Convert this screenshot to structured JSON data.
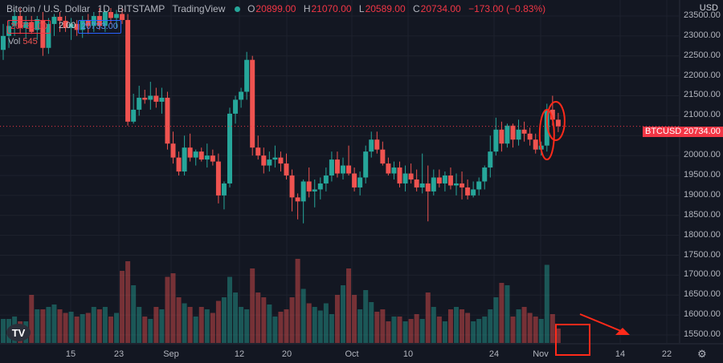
{
  "header": {
    "symbol_name": "Bitcoin / U.S. Dollar",
    "interval": "1D",
    "exchange": "BITSTAMP",
    "source": "TradingView",
    "ohlc": [
      {
        "k": "O",
        "v": "20899.00"
      },
      {
        "k": "H",
        "v": "21070.00"
      },
      {
        "k": "L",
        "v": "20589.00"
      },
      {
        "k": "C",
        "v": "20734.00"
      },
      {
        "k": "",
        "v": "−173.00 (−0.83%)"
      }
    ]
  },
  "order": {
    "sell": "20731.00",
    "spread": "2.00",
    "buy": "20733.00"
  },
  "volume": {
    "label": "Vol",
    "value": "545"
  },
  "axis": {
    "currency": "USD",
    "price_labels": [
      "23500.00",
      "23000.00",
      "22500.00",
      "22000.00",
      "21500.00",
      "21000.00",
      "20500.00",
      "20000.00",
      "19500.00",
      "19000.00",
      "18500.00",
      "18000.00",
      "17500.00",
      "17000.00",
      "16500.00",
      "16000.00",
      "15500.00"
    ],
    "time_labels": [
      "15",
      "23",
      "Sep",
      "12",
      "20",
      "Oct",
      "10",
      "24",
      "Nov",
      "14",
      "22"
    ]
  },
  "last_price": {
    "symbol": "BTCUSD",
    "price": "20734.00"
  },
  "colors": {
    "up": "#26a69a",
    "down": "#ef5350",
    "annotation": "#ff2a1a",
    "background": "#131722"
  },
  "icons": {
    "settings": "gear-icon",
    "logo": "tradingview-logo-icon"
  },
  "chart_data": {
    "type": "candlestick",
    "ylim": [
      15300,
      23700
    ],
    "candles": [
      [
        22650,
        23300,
        22400,
        23000,
        20
      ],
      [
        23000,
        23400,
        22700,
        23250,
        20
      ],
      [
        23250,
        23650,
        23000,
        23500,
        22
      ],
      [
        23500,
        23700,
        23050,
        23200,
        18
      ],
      [
        23200,
        23500,
        22950,
        23350,
        18
      ],
      [
        23350,
        23500,
        23050,
        23100,
        40
      ],
      [
        23150,
        23500,
        22900,
        23420,
        28
      ],
      [
        23400,
        23600,
        22500,
        22700,
        28
      ],
      [
        22700,
        23450,
        22550,
        23300,
        30
      ],
      [
        23300,
        23550,
        23000,
        23480,
        32
      ],
      [
        23480,
        23600,
        23100,
        23380,
        28
      ],
      [
        23380,
        23500,
        23100,
        23200,
        25
      ],
      [
        23200,
        23450,
        22900,
        23300,
        26
      ],
      [
        23300,
        23400,
        23000,
        23150,
        22
      ],
      [
        23150,
        23500,
        22950,
        23400,
        24
      ],
      [
        23400,
        23550,
        23050,
        23250,
        25
      ],
      [
        23250,
        23600,
        23100,
        23500,
        30
      ],
      [
        23500,
        23700,
        23150,
        23250,
        28
      ],
      [
        23250,
        23650,
        23100,
        23600,
        30
      ],
      [
        23600,
        23700,
        23300,
        23450,
        22
      ],
      [
        23450,
        23650,
        23200,
        23550,
        25
      ],
      [
        23550,
        23700,
        23300,
        23400,
        60
      ],
      [
        23400,
        23550,
        20750,
        20850,
        68
      ],
      [
        20850,
        21550,
        20800,
        21150,
        48
      ],
      [
        21150,
        21750,
        21000,
        21450,
        30
      ],
      [
        21450,
        21650,
        21300,
        21400,
        22
      ],
      [
        21400,
        21850,
        21150,
        21500,
        20
      ],
      [
        21500,
        21700,
        21200,
        21350,
        30
      ],
      [
        21350,
        21700,
        21050,
        21450,
        28
      ],
      [
        21450,
        21600,
        20150,
        20300,
        55
      ],
      [
        20300,
        20600,
        19800,
        19950,
        58
      ],
      [
        19950,
        20100,
        19500,
        19600,
        38
      ],
      [
        19600,
        20500,
        19500,
        20200,
        33
      ],
      [
        20200,
        20550,
        19850,
        19950,
        30
      ],
      [
        19950,
        20150,
        19750,
        20100,
        22
      ],
      [
        20100,
        20200,
        19850,
        19900,
        30
      ],
      [
        19900,
        20300,
        19700,
        20000,
        28
      ],
      [
        20000,
        20150,
        19750,
        19850,
        25
      ],
      [
        19850,
        20050,
        18800,
        19000,
        35
      ],
      [
        19000,
        19350,
        18650,
        19300,
        38
      ],
      [
        19300,
        21200,
        19200,
        21050,
        55
      ],
      [
        21050,
        21500,
        20800,
        21400,
        42
      ],
      [
        21400,
        21700,
        21200,
        21600,
        30
      ],
      [
        21600,
        22600,
        21400,
        22400,
        28
      ],
      [
        22400,
        22500,
        20000,
        20200,
        62
      ],
      [
        20200,
        20500,
        19900,
        20000,
        42
      ],
      [
        20000,
        20200,
        19550,
        19750,
        38
      ],
      [
        19750,
        20100,
        19600,
        19900,
        32
      ],
      [
        19900,
        20250,
        19700,
        19950,
        22
      ],
      [
        19950,
        20100,
        19600,
        19800,
        26
      ],
      [
        19800,
        20050,
        19400,
        19500,
        28
      ],
      [
        19500,
        19650,
        18600,
        18950,
        38
      ],
      [
        18950,
        19050,
        18400,
        18850,
        70
      ],
      [
        18850,
        19400,
        18300,
        19350,
        45
      ],
      [
        19350,
        19700,
        18950,
        19100,
        33
      ],
      [
        19100,
        19400,
        18700,
        19150,
        30
      ],
      [
        19150,
        19450,
        18900,
        19300,
        27
      ],
      [
        19300,
        19700,
        19100,
        19500,
        33
      ],
      [
        19500,
        20100,
        19350,
        19900,
        24
      ],
      [
        19900,
        20100,
        19450,
        19550,
        40
      ],
      [
        19550,
        19950,
        19400,
        19750,
        48
      ],
      [
        19750,
        20250,
        19500,
        19550,
        62
      ],
      [
        19550,
        19700,
        19100,
        19200,
        40
      ],
      [
        19200,
        19600,
        19000,
        19450,
        28
      ],
      [
        19450,
        20250,
        19300,
        20100,
        44
      ],
      [
        20100,
        20600,
        19950,
        20400,
        34
      ],
      [
        20400,
        20600,
        20050,
        20150,
        26
      ],
      [
        20150,
        20350,
        19750,
        19800,
        28
      ],
      [
        19800,
        19950,
        19500,
        19550,
        18
      ],
      [
        19550,
        19850,
        19400,
        19700,
        22
      ],
      [
        19700,
        19850,
        19200,
        19300,
        22
      ],
      [
        19300,
        19750,
        19100,
        19550,
        18
      ],
      [
        19550,
        19800,
        19300,
        19400,
        20
      ],
      [
        19400,
        19650,
        19100,
        19200,
        24
      ],
      [
        19200,
        20050,
        19050,
        19300,
        20
      ],
      [
        19300,
        19750,
        18350,
        19100,
        42
      ],
      [
        19100,
        19650,
        19000,
        19450,
        30
      ],
      [
        19450,
        19650,
        19200,
        19300,
        22
      ],
      [
        19300,
        19600,
        19100,
        19500,
        18
      ],
      [
        19500,
        19700,
        19150,
        19250,
        28
      ],
      [
        19250,
        19550,
        19000,
        19300,
        30
      ],
      [
        19300,
        19600,
        18900,
        19200,
        28
      ],
      [
        19200,
        19400,
        18900,
        19000,
        25
      ],
      [
        19000,
        19350,
        18950,
        19150,
        18
      ],
      [
        19150,
        19450,
        19000,
        19350,
        20
      ],
      [
        19350,
        19750,
        19150,
        19700,
        22
      ],
      [
        19700,
        20500,
        19450,
        20100,
        28
      ],
      [
        20100,
        20950,
        20000,
        20650,
        38
      ],
      [
        20650,
        20850,
        20100,
        20300,
        50
      ],
      [
        20300,
        20800,
        20200,
        20750,
        48
      ],
      [
        20750,
        20800,
        20200,
        20400,
        22
      ],
      [
        20400,
        20900,
        20250,
        20650,
        28
      ],
      [
        20650,
        20850,
        20350,
        20550,
        30
      ],
      [
        20550,
        20700,
        20250,
        20400,
        25
      ],
      [
        20400,
        20550,
        20050,
        20150,
        22
      ],
      [
        20150,
        20350,
        20000,
        20250,
        20
      ],
      [
        20250,
        21300,
        20100,
        21150,
        65
      ],
      [
        21150,
        21500,
        20750,
        20900,
        24
      ],
      [
        20900,
        21070,
        20589,
        20734,
        12
      ]
    ]
  }
}
